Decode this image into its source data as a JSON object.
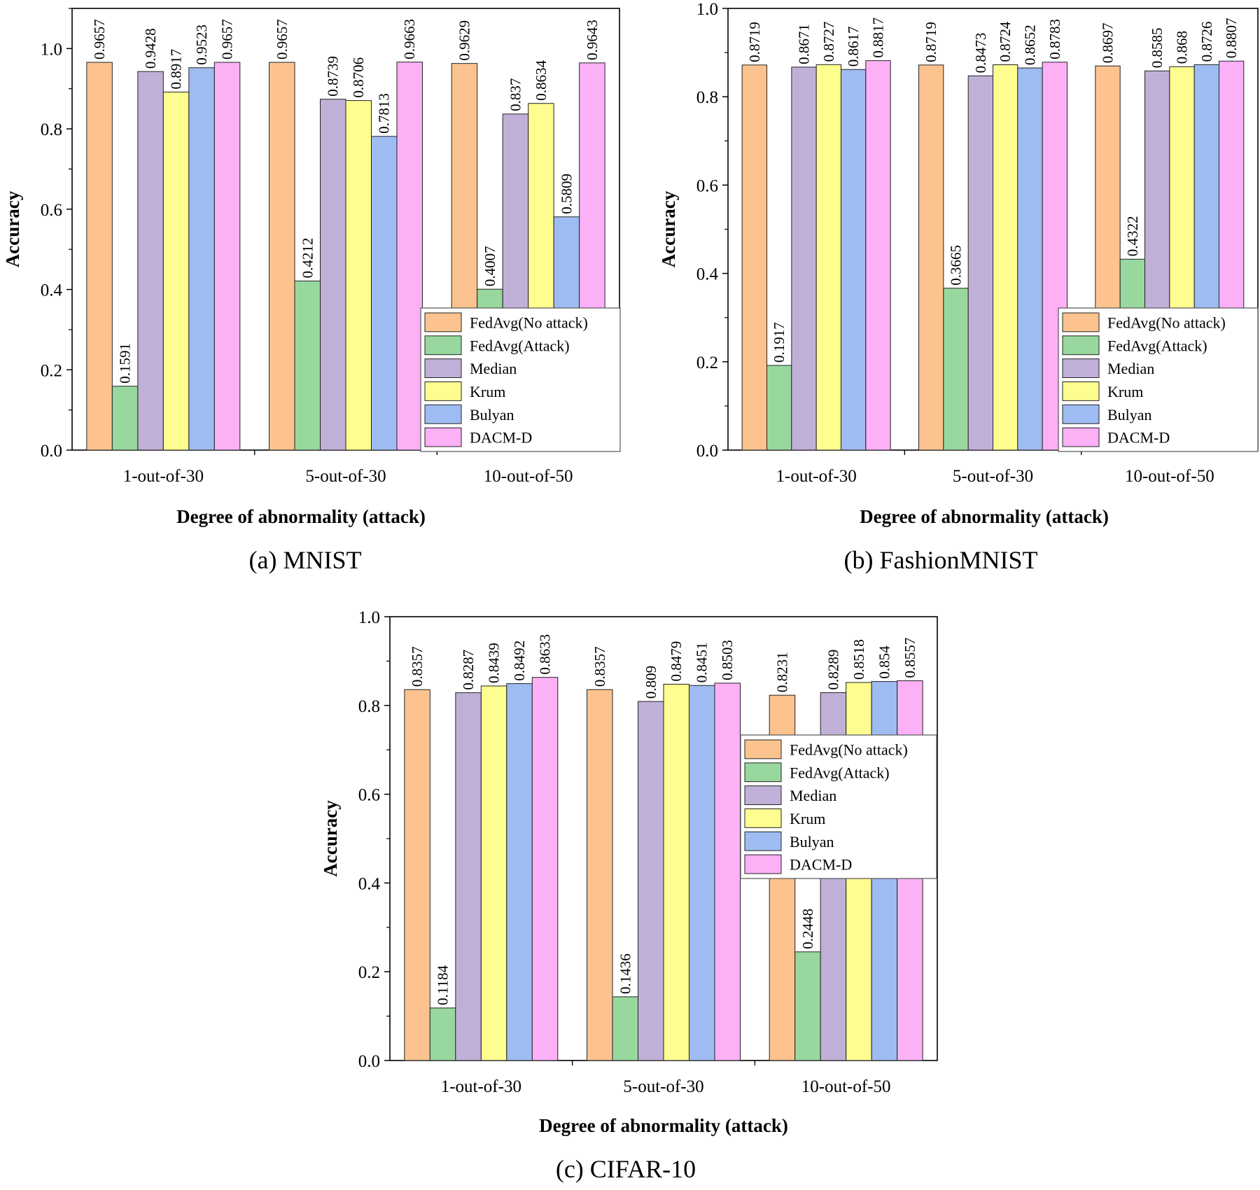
{
  "figure": {
    "colors": {
      "FedAvg(No attack)": "#fcc38f",
      "FedAvg(Attack)": "#98d89e",
      "Median": "#c0b0d8",
      "Krum": "#fdfd90",
      "Bulyan": "#9fbcf2",
      "DACM-D": "#fcb0f6"
    }
  },
  "chart_data": [
    {
      "type": "bar",
      "caption": "(a) MNIST",
      "xlabel": "Degree of abnormality (attack)",
      "ylabel": "Accuracy",
      "ylim": [
        0,
        1.1
      ],
      "yticks": [
        "0.0",
        "0.2",
        "0.4",
        "0.6",
        "0.8",
        "1.0"
      ],
      "legend_position": "bottom-right",
      "categories": [
        "1-out-of-30",
        "5-out-of-30",
        "10-out-of-50"
      ],
      "series": [
        {
          "name": "FedAvg(No attack)",
          "values": [
            0.9657,
            0.9657,
            0.9629
          ],
          "labels": [
            "0.9657",
            "0.9657",
            "0.9629"
          ]
        },
        {
          "name": "FedAvg(Attack)",
          "values": [
            0.1591,
            0.4212,
            0.4007
          ],
          "labels": [
            "0.1591",
            "0.4212",
            "0.4007"
          ]
        },
        {
          "name": "Median",
          "values": [
            0.9428,
            0.8739,
            0.837
          ],
          "labels": [
            "0.9428",
            "0.8739",
            "0.837"
          ]
        },
        {
          "name": "Krum",
          "values": [
            0.8917,
            0.8706,
            0.8634
          ],
          "labels": [
            "0.8917",
            "0.8706",
            "0.8634"
          ]
        },
        {
          "name": "Bulyan",
          "values": [
            0.9523,
            0.7813,
            0.5809
          ],
          "labels": [
            "0.9523",
            "0.7813",
            "0.5809"
          ]
        },
        {
          "name": "DACM-D",
          "values": [
            0.9657,
            0.9663,
            0.9643
          ],
          "labels": [
            "0.9657",
            "0.9663",
            "0.9643"
          ]
        }
      ]
    },
    {
      "type": "bar",
      "caption": "(b) FashionMNIST",
      "xlabel": "Degree of abnormality (attack)",
      "ylabel": "Accuracy",
      "ylim": [
        0,
        1.0
      ],
      "yticks": [
        "0.0",
        "0.2",
        "0.4",
        "0.6",
        "0.8",
        "1.0"
      ],
      "legend_position": "bottom-right",
      "categories": [
        "1-out-of-30",
        "5-out-of-30",
        "10-out-of-50"
      ],
      "series": [
        {
          "name": "FedAvg(No attack)",
          "values": [
            0.8719,
            0.8719,
            0.8697
          ],
          "labels": [
            "0.8719",
            "0.8719",
            "0.8697"
          ]
        },
        {
          "name": "FedAvg(Attack)",
          "values": [
            0.1917,
            0.3665,
            0.4322
          ],
          "labels": [
            "0.1917",
            "0.3665",
            "0.4322"
          ]
        },
        {
          "name": "Median",
          "values": [
            0.8671,
            0.8473,
            0.8585
          ],
          "labels": [
            "0.8671",
            "0.8473",
            "0.8585"
          ]
        },
        {
          "name": "Krum",
          "values": [
            0.8727,
            0.8724,
            0.868
          ],
          "labels": [
            "0.8727",
            "0.8724",
            "0.868"
          ]
        },
        {
          "name": "Bulyan",
          "values": [
            0.8617,
            0.8652,
            0.8726
          ],
          "labels": [
            "0.8617",
            "0.8652",
            "0.8726"
          ]
        },
        {
          "name": "DACM-D",
          "values": [
            0.8817,
            0.8783,
            0.8807
          ],
          "labels": [
            "0.8817",
            "0.8783",
            "0.8807"
          ]
        }
      ]
    },
    {
      "type": "bar",
      "caption": "(c) CIFAR-10",
      "xlabel": "Degree of abnormality (attack)",
      "ylabel": "Accuracy",
      "ylim": [
        0,
        1.0
      ],
      "yticks": [
        "0.0",
        "0.2",
        "0.4",
        "0.6",
        "0.8",
        "1.0"
      ],
      "legend_position": "right",
      "categories": [
        "1-out-of-30",
        "5-out-of-30",
        "10-out-of-50"
      ],
      "series": [
        {
          "name": "FedAvg(No attack)",
          "values": [
            0.8357,
            0.8357,
            0.8231
          ],
          "labels": [
            "0.8357",
            "0.8357",
            "0.8231"
          ]
        },
        {
          "name": "FedAvg(Attack)",
          "values": [
            0.1184,
            0.1436,
            0.2448
          ],
          "labels": [
            "0.1184",
            "0.1436",
            "0.2448"
          ]
        },
        {
          "name": "Median",
          "values": [
            0.8287,
            0.809,
            0.8289
          ],
          "labels": [
            "0.8287",
            "0.809",
            "0.8289"
          ]
        },
        {
          "name": "Krum",
          "values": [
            0.8439,
            0.8479,
            0.8518
          ],
          "labels": [
            "0.8439",
            "0.8479",
            "0.8518"
          ]
        },
        {
          "name": "Bulyan",
          "values": [
            0.8492,
            0.8451,
            0.854
          ],
          "labels": [
            "0.8492",
            "0.8451",
            "0.854"
          ]
        },
        {
          "name": "DACM-D",
          "values": [
            0.8633,
            0.8503,
            0.8557
          ],
          "labels": [
            "0.8633",
            "0.8503",
            "0.8557"
          ]
        }
      ]
    }
  ]
}
